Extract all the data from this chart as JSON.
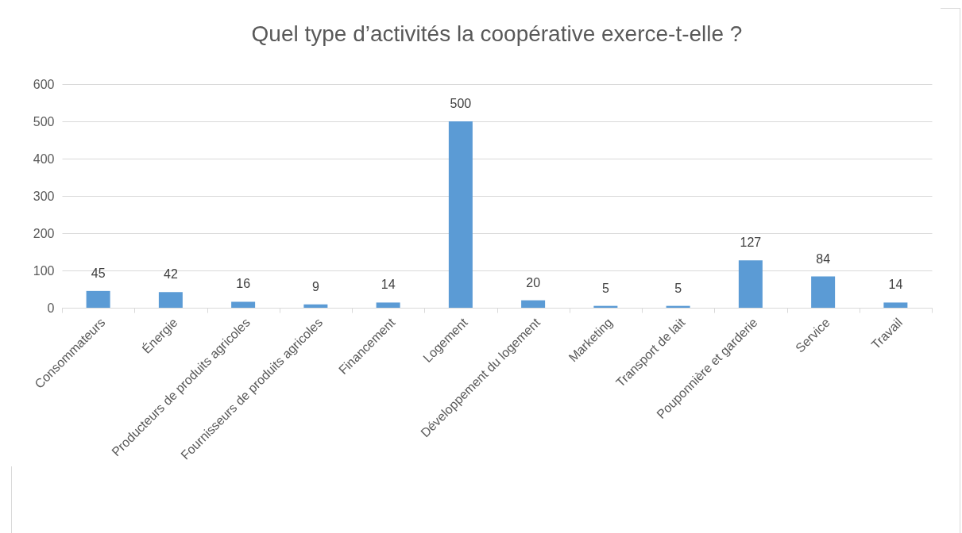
{
  "chart_data": {
    "type": "bar",
    "title": "Quel type d’activités la coopérative exerce-t-elle ?",
    "categories": [
      "Consommateurs",
      "Énergie",
      "Producteurs de produits agricoles",
      "Fournisseurs de produits agricoles",
      "Financement",
      "Logement",
      "Développement du logement",
      "Marketing",
      "Transport de lait",
      "Pouponnière et garderie",
      "Service",
      "Travail"
    ],
    "values": [
      45,
      42,
      16,
      9,
      14,
      500,
      20,
      5,
      5,
      127,
      84,
      14
    ],
    "color": "#5b9bd5",
    "ylim": [
      0,
      600
    ],
    "yticks": [
      0,
      100,
      200,
      300,
      400,
      500,
      600
    ],
    "grid": "y",
    "data_labels": true
  }
}
